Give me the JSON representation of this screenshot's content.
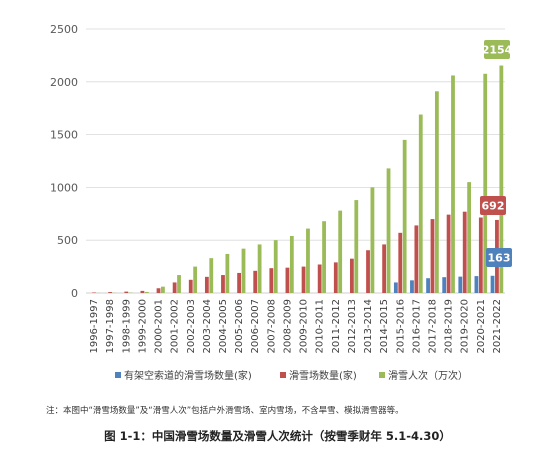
{
  "chart_data": {
    "type": "bar",
    "categories": [
      "1996-1997",
      "1997-1998",
      "1998-1999",
      "1999-2000",
      "2000-2001",
      "2001-2002",
      "2002-2003",
      "2003-2004",
      "2004-2005",
      "2005-2006",
      "2006-2007",
      "2007-2008",
      "2008-2009",
      "2009-2010",
      "2010-2011",
      "2011-2012",
      "2012-2013",
      "2013-2014",
      "2014-2015",
      "2015-2016",
      "2016-2017",
      "2017-2018",
      "2018-2019",
      "2019-2020",
      "2020-2021",
      "2021-2022"
    ],
    "series": [
      {
        "name": "有架空索道的滑雪场数量(家)",
        "color": "#4f81bd",
        "values": [
          0,
          0,
          0,
          0,
          0,
          0,
          0,
          0,
          0,
          0,
          0,
          0,
          0,
          0,
          0,
          0,
          0,
          0,
          0,
          100,
          120,
          140,
          150,
          155,
          160,
          163
        ]
      },
      {
        "name": "滑雪场数量(家)",
        "color": "#c0504d",
        "values": [
          5,
          9,
          13,
          20,
          45,
          100,
          125,
          153,
          170,
          190,
          210,
          235,
          240,
          250,
          270,
          290,
          325,
          405,
          460,
          570,
          640,
          700,
          742,
          770,
          715,
          692
        ]
      },
      {
        "name": "滑雪人次（万次）",
        "color": "#9bbb59",
        "values": [
          1,
          2,
          4,
          10,
          60,
          170,
          250,
          330,
          370,
          420,
          460,
          500,
          540,
          610,
          680,
          780,
          880,
          1000,
          1180,
          1450,
          1690,
          1910,
          2060,
          1050,
          2076,
          2154
        ]
      }
    ],
    "ylim": [
      0,
      2500
    ],
    "yticks": [
      0,
      500,
      1000,
      1500,
      2000,
      2500
    ],
    "yticklabels": [
      "0",
      "500",
      "1000",
      "1500",
      "2000",
      "2500"
    ],
    "grid": true,
    "legend": "bottom",
    "data_labels": [
      {
        "series": 2,
        "index": 25,
        "text": "2154"
      },
      {
        "series": 1,
        "index": 25,
        "text": "692"
      },
      {
        "series": 0,
        "index": 25,
        "text": "163"
      }
    ]
  },
  "note": "注：本图中“滑雪场数量”及“滑雪人次”包括户外滑雪场、室内雪场，不含旱雪、模拟滑雪器等。",
  "caption": "图 1-1：中国滑雪场数量及滑雪人次统计（按雪季财年 5.1-4.30）"
}
